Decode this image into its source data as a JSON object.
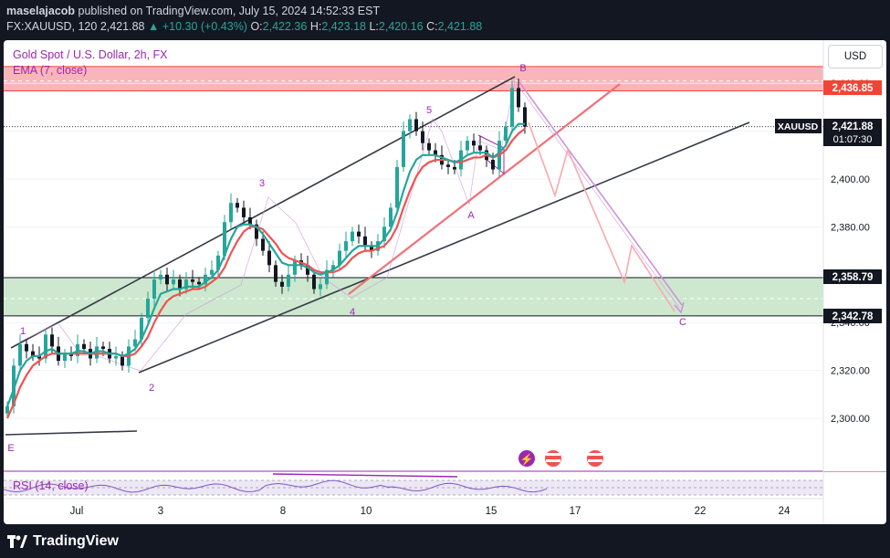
{
  "header": {
    "author": "maselajacob",
    "published_text": "published on TradingView.com, July 15, 2024 14:52:33 EST",
    "symbol_line": "FX:XAUUSD, 120",
    "last": "2,421.88",
    "change": "+10.30 (+0.43%)",
    "o_label": "O:",
    "o": "2,422.36",
    "h_label": "H:",
    "h": "2,423.18",
    "l_label": "L:",
    "l": "2,420.16",
    "c_label": "C:",
    "c": "2,421.88"
  },
  "legend": {
    "title": "Gold Spot / U.S. Dollar, 2h, FX",
    "ema": "EMA (7, close)",
    "rsi": "RSI (14, close)"
  },
  "currency_button": "USD",
  "price_labels": {
    "resistance": "2,436.85",
    "symbol": "XAUUSD",
    "current": "2,421.88",
    "countdown": "01:07:30",
    "support_top": "2,358.79",
    "support_bottom": "2,342.78"
  },
  "wave_labels": [
    "1",
    "2",
    "3",
    "4",
    "5",
    "A",
    "B",
    "C",
    "E"
  ],
  "footer": {
    "brand": "TradingView"
  },
  "colors": {
    "up": "#26a69a",
    "down": "#ef5350",
    "wave": "#9c27b0",
    "resistance_zone": "#f7a9ae",
    "support_zone": "#c8e6c9"
  },
  "chart_data": {
    "type": "candlestick",
    "title": "Gold Spot / U.S. Dollar, 2h, FX",
    "y_ticks": [
      2300,
      2320,
      2340,
      2360,
      2380,
      2400,
      2420,
      2440
    ],
    "y_tick_labels": [
      "2,300.00",
      "2,320.00",
      "2,340.00",
      "2,360.00",
      "2,380.00",
      "2,400.00",
      "2,420.00",
      "2,440.00"
    ],
    "ylim": [
      2278,
      2448
    ],
    "x_tick_labels": [
      "Jul",
      "3",
      "8",
      "10",
      "15",
      "17",
      "22",
      "24"
    ],
    "close_path": [
      2305,
      2322,
      2331,
      2328,
      2326,
      2325,
      2335,
      2330,
      2324,
      2327,
      2326,
      2331,
      2329,
      2325,
      2330,
      2329,
      2325,
      2326,
      2322,
      2330,
      2333,
      2342,
      2350,
      2358,
      2360,
      2356,
      2358,
      2354,
      2358,
      2357,
      2356,
      2360,
      2362,
      2368,
      2382,
      2390,
      2388,
      2384,
      2381,
      2375,
      2370,
      2364,
      2357,
      2355,
      2360,
      2366,
      2364,
      2360,
      2354,
      2356,
      2362,
      2364,
      2370,
      2374,
      2378,
      2376,
      2372,
      2370,
      2374,
      2380,
      2388,
      2405,
      2420,
      2425,
      2420,
      2415,
      2412,
      2410,
      2406,
      2405,
      2404,
      2412,
      2416,
      2414,
      2412,
      2408,
      2404,
      2416,
      2422,
      2438,
      2430,
      2421.88
    ],
    "ema7": [
      2305,
      2312,
      2320,
      2324,
      2326,
      2326,
      2328,
      2329,
      2327,
      2327,
      2327,
      2328,
      2328,
      2327,
      2328,
      2328,
      2327,
      2327,
      2326,
      2327,
      2329,
      2333,
      2339,
      2346,
      2352,
      2353,
      2354,
      2354,
      2355,
      2355,
      2355,
      2357,
      2359,
      2362,
      2368,
      2375,
      2380,
      2381,
      2381,
      2380,
      2377,
      2373,
      2369,
      2365,
      2364,
      2364,
      2364,
      2363,
      2361,
      2360,
      2361,
      2362,
      2364,
      2367,
      2370,
      2372,
      2372,
      2372,
      2372,
      2375,
      2379,
      2386,
      2395,
      2403,
      2408,
      2410,
      2410,
      2410,
      2409,
      2408,
      2407,
      2408,
      2410,
      2411,
      2411,
      2411,
      2409,
      2411,
      2414,
      2420,
      2423,
      2423
    ],
    "ema_ma": [
      2300,
      2306,
      2313,
      2318,
      2322,
      2324,
      2326,
      2327,
      2327,
      2327,
      2327,
      2327,
      2327,
      2327,
      2327,
      2327,
      2327,
      2327,
      2326,
      2326,
      2327,
      2330,
      2334,
      2340,
      2345,
      2349,
      2351,
      2352,
      2353,
      2354,
      2354,
      2355,
      2357,
      2359,
      2363,
      2369,
      2374,
      2378,
      2380,
      2380,
      2379,
      2376,
      2373,
      2369,
      2367,
      2366,
      2365,
      2364,
      2362,
      2361,
      2361,
      2361,
      2362,
      2364,
      2367,
      2369,
      2370,
      2370,
      2371,
      2372,
      2375,
      2380,
      2388,
      2395,
      2401,
      2405,
      2407,
      2408,
      2408,
      2408,
      2407,
      2407,
      2408,
      2409,
      2409,
      2410,
      2409,
      2410,
      2412,
      2416,
      2419,
      2421
    ],
    "rsi_range": [
      0,
      100
    ]
  }
}
